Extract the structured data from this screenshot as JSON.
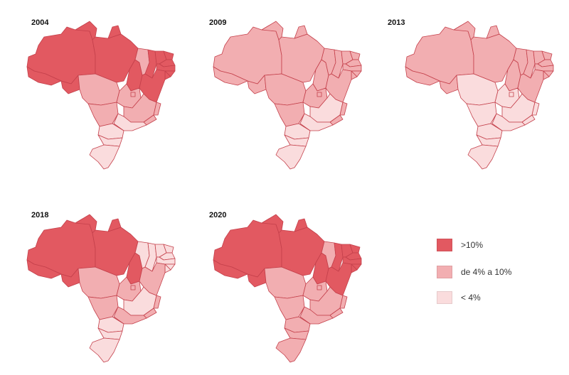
{
  "colors": {
    "high": "#e25961",
    "mid": "#f2aeb1",
    "low": "#fadcdd",
    "border": "#c4404b"
  },
  "maps": [
    {
      "year": "2004",
      "regions": {
        "north": "high",
        "northeast": "high",
        "center_west": "mid",
        "southeast": "mid",
        "south": "low"
      },
      "overrides": {
        "MA": "mid",
        "SP": "low"
      }
    },
    {
      "year": "2009",
      "regions": {
        "north": "mid",
        "northeast": "mid",
        "center_west": "mid",
        "southeast": "mid",
        "south": "low"
      },
      "overrides": {
        "MG": "low",
        "SP": "low"
      }
    },
    {
      "year": "2013",
      "regions": {
        "north": "mid",
        "northeast": "mid",
        "center_west": "low",
        "southeast": "low",
        "south": "low"
      },
      "overrides": {}
    },
    {
      "year": "2018",
      "regions": {
        "north": "high",
        "northeast": "low",
        "center_west": "mid",
        "southeast": "mid",
        "south": "low"
      },
      "overrides": {
        "TO": "high",
        "BA": "mid",
        "MG": "low"
      }
    },
    {
      "year": "2020",
      "regions": {
        "north": "high",
        "northeast": "high",
        "center_west": "mid",
        "southeast": "mid",
        "south": "mid"
      },
      "overrides": {
        "MA": "mid"
      }
    }
  ],
  "legend": [
    {
      "label": ">10%",
      "level": "high"
    },
    {
      "label": "de 4% a 10%",
      "level": "mid"
    },
    {
      "label": "< 4%",
      "level": "low"
    }
  ]
}
